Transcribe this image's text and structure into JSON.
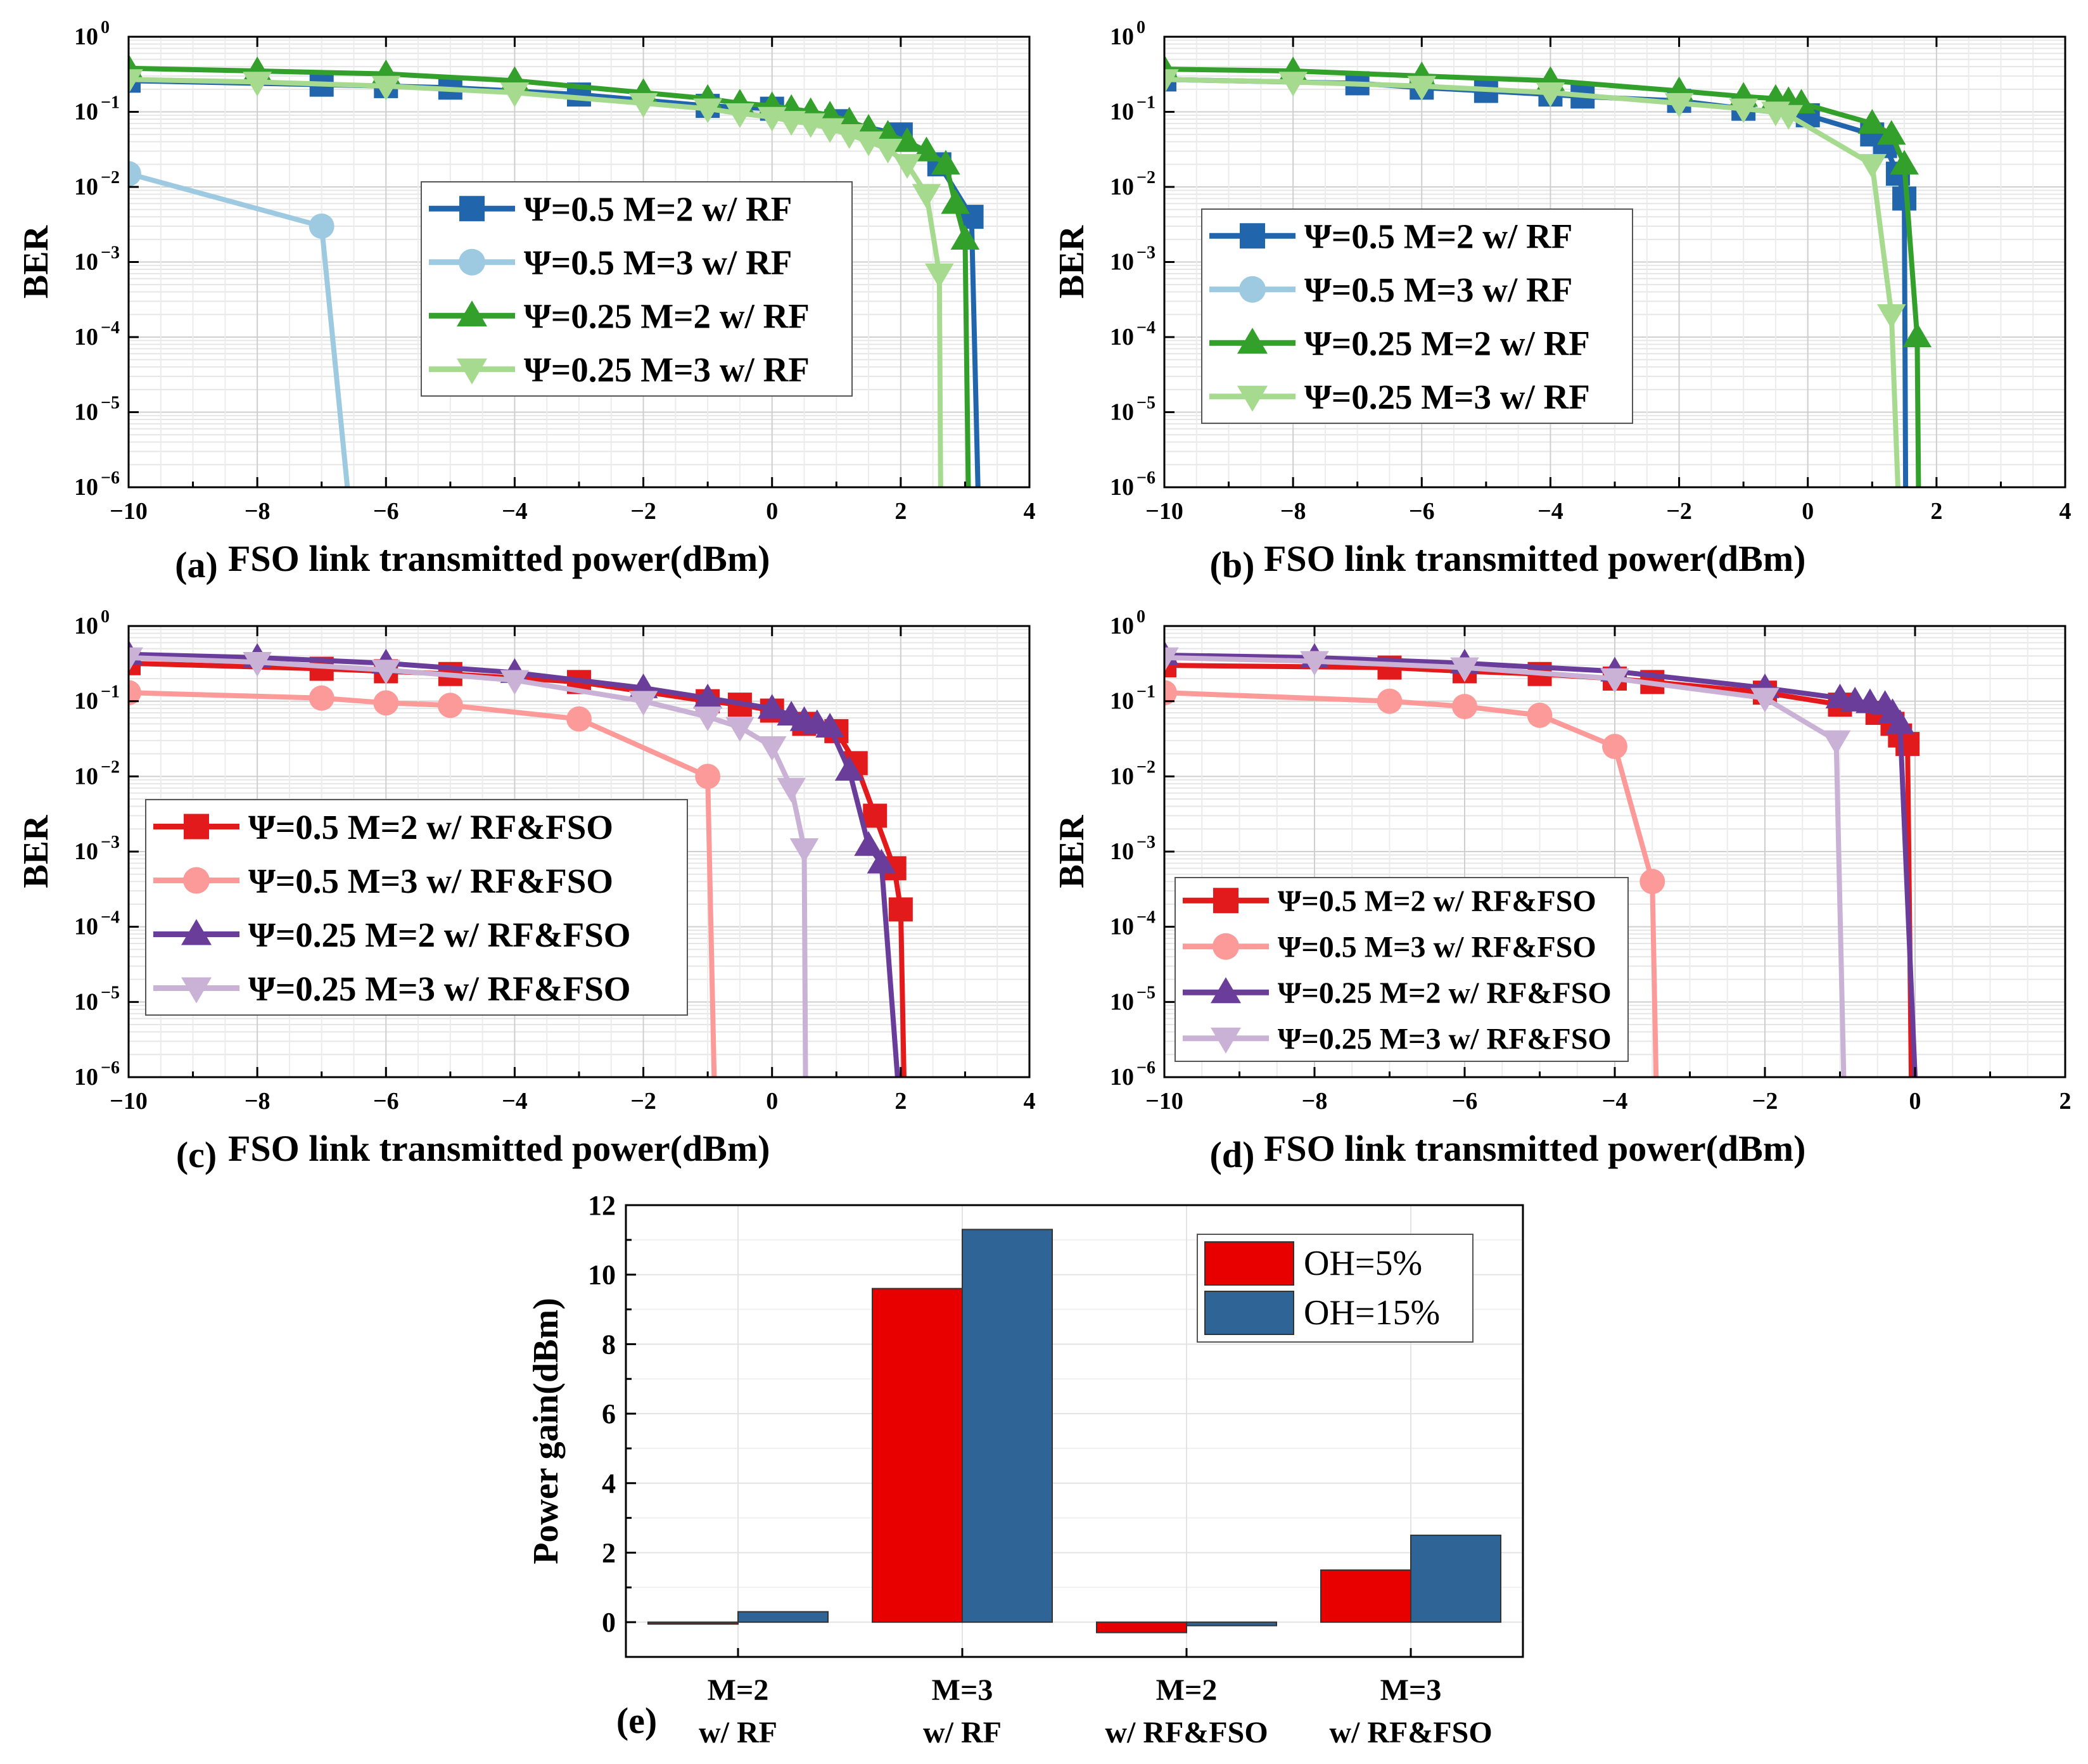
{
  "chart_data": [
    {
      "id": "a",
      "type": "line",
      "yscale": "log",
      "panel_label": "(a)",
      "xlabel": "FSO link transmitted power(dBm)",
      "ylabel": "BER",
      "xlim": [
        -10,
        4
      ],
      "xticks": [
        -10,
        -8,
        -6,
        -4,
        -2,
        0,
        2,
        4
      ],
      "ylim_exp": [
        -6,
        0
      ],
      "legend_position": "center-right",
      "series": [
        {
          "name": "Ψ=0.5 M=2 w/ RF",
          "color": "#2166ac",
          "marker": "square",
          "x": [
            -10,
            -7,
            -6,
            -5,
            -3,
            -1,
            0,
            1,
            2,
            2.6,
            3.1,
            3.2
          ],
          "y": [
            0.26,
            0.23,
            0.22,
            0.21,
            0.17,
            0.12,
            0.11,
            0.075,
            0.05,
            0.02,
            0.004,
            1e-06
          ]
        },
        {
          "name": "Ψ=0.5 M=3 w/ RF",
          "color": "#9ecae1",
          "marker": "circle",
          "x": [
            -10,
            -7,
            -6.6
          ],
          "y": [
            0.015,
            0.003,
            1e-06
          ]
        },
        {
          "name": "Ψ=0.25 M=2 w/ RF",
          "color": "#33a02c",
          "marker": "triangle-up",
          "x": [
            -10,
            -8,
            -6,
            -4,
            -2,
            -1,
            -0.5,
            0,
            0.3,
            0.6,
            0.9,
            1.2,
            1.5,
            1.8,
            2.1,
            2.4,
            2.7,
            2.85,
            3.0,
            3.05
          ],
          "y": [
            0.38,
            0.35,
            0.32,
            0.26,
            0.18,
            0.15,
            0.13,
            0.12,
            0.11,
            0.1,
            0.09,
            0.075,
            0.06,
            0.05,
            0.04,
            0.03,
            0.02,
            0.006,
            0.002,
            1e-06
          ]
        },
        {
          "name": "Ψ=0.25 M=3 w/ RF",
          "color": "#a6db8f",
          "marker": "triangle-down",
          "x": [
            -10,
            -8,
            -6,
            -4,
            -2,
            -1,
            -0.5,
            0,
            0.3,
            0.6,
            0.9,
            1.2,
            1.5,
            1.8,
            2.1,
            2.4,
            2.6,
            2.62
          ],
          "y": [
            0.27,
            0.25,
            0.22,
            0.18,
            0.13,
            0.11,
            0.095,
            0.085,
            0.075,
            0.07,
            0.06,
            0.05,
            0.04,
            0.032,
            0.02,
            0.008,
            0.0007,
            1e-06
          ]
        }
      ]
    },
    {
      "id": "b",
      "type": "line",
      "yscale": "log",
      "panel_label": "(b)",
      "xlabel": "FSO link transmitted power(dBm)",
      "ylabel": "BER",
      "xlim": [
        -10,
        4
      ],
      "xticks": [
        -10,
        -8,
        -6,
        -4,
        -2,
        0,
        2,
        4
      ],
      "ylim_exp": [
        -6,
        0
      ],
      "legend_position": "center-left",
      "series": [
        {
          "name": "Ψ=0.5 M=2 w/ RF",
          "color": "#2166ac",
          "marker": "square",
          "x": [
            -10,
            -7,
            -6,
            -5,
            -4,
            -3.5,
            -2,
            -1,
            0,
            1,
            1.2,
            1.4,
            1.5,
            1.52
          ],
          "y": [
            0.27,
            0.24,
            0.21,
            0.19,
            0.17,
            0.16,
            0.14,
            0.11,
            0.09,
            0.05,
            0.035,
            0.015,
            0.007,
            1e-06
          ]
        },
        {
          "name": "Ψ=0.5 M=3 w/ RF",
          "color": "#9ecae1",
          "marker": "circle",
          "x": [],
          "y": []
        },
        {
          "name": "Ψ=0.25 M=2 w/ RF",
          "color": "#33a02c",
          "marker": "triangle-up",
          "x": [
            -10,
            -8,
            -6,
            -4,
            -2,
            -1,
            -0.5,
            -0.3,
            -0.1,
            1,
            1.3,
            1.5,
            1.7,
            1.72
          ],
          "y": [
            0.37,
            0.35,
            0.3,
            0.26,
            0.19,
            0.16,
            0.15,
            0.14,
            0.13,
            0.07,
            0.05,
            0.02,
            0.0001,
            1e-06
          ]
        },
        {
          "name": "Ψ=0.25 M=3 w/ RF",
          "color": "#a6db8f",
          "marker": "triangle-down",
          "x": [
            -10,
            -8,
            -6,
            -4,
            -2,
            -1,
            -0.5,
            -0.3,
            1,
            1.3,
            1.4
          ],
          "y": [
            0.27,
            0.25,
            0.22,
            0.18,
            0.13,
            0.11,
            0.1,
            0.09,
            0.02,
            0.0002,
            1e-06
          ]
        }
      ]
    },
    {
      "id": "c",
      "type": "line",
      "yscale": "log",
      "panel_label": "(c)",
      "xlabel": "FSO link transmitted power(dBm)",
      "ylabel": "BER",
      "xlim": [
        -10,
        4
      ],
      "xticks": [
        -10,
        -8,
        -6,
        -4,
        -2,
        0,
        2,
        4
      ],
      "ylim_exp": [
        -6,
        0
      ],
      "legend_position": "bottom-left",
      "series": [
        {
          "name": "Ψ=0.5 M=2 w/ RF&FSO",
          "color": "#e31a1c",
          "marker": "square",
          "x": [
            -10,
            -7,
            -6,
            -5,
            -3,
            -1,
            -0.5,
            0,
            0.5,
            1,
            1.3,
            1.6,
            1.9,
            2.0,
            2.05
          ],
          "y": [
            0.32,
            0.27,
            0.25,
            0.23,
            0.18,
            0.1,
            0.09,
            0.075,
            0.05,
            0.04,
            0.015,
            0.003,
            0.0006,
            0.00017,
            1e-06
          ]
        },
        {
          "name": "Ψ=0.5 M=3 w/ RF&FSO",
          "color": "#fb9a99",
          "marker": "circle",
          "x": [
            -10,
            -7,
            -6,
            -5,
            -3,
            -1,
            -0.9
          ],
          "y": [
            0.13,
            0.11,
            0.095,
            0.088,
            0.058,
            0.01,
            1e-06
          ]
        },
        {
          "name": "Ψ=0.25 M=2 w/ RF&FSO",
          "color": "#6a3d9a",
          "marker": "triangle-up",
          "x": [
            -10,
            -8,
            -6,
            -4,
            -2,
            -1,
            0,
            0.3,
            0.5,
            0.7,
            0.9,
            1.2,
            1.5,
            1.7,
            1.95
          ],
          "y": [
            0.42,
            0.38,
            0.32,
            0.24,
            0.15,
            0.11,
            0.08,
            0.065,
            0.055,
            0.05,
            0.045,
            0.012,
            0.0012,
            0.0007,
            1e-06
          ]
        },
        {
          "name": "Ψ=0.25 M=3 w/ RF&FSO",
          "color": "#cab2d6",
          "marker": "triangle-down",
          "x": [
            -10,
            -8,
            -6,
            -4,
            -2,
            -1,
            -0.5,
            0,
            0.3,
            0.5,
            0.52
          ],
          "y": [
            0.38,
            0.33,
            0.26,
            0.19,
            0.1,
            0.062,
            0.045,
            0.025,
            0.007,
            0.0011,
            1e-06
          ]
        }
      ]
    },
    {
      "id": "d",
      "type": "line",
      "yscale": "log",
      "panel_label": "(d)",
      "xlabel": "FSO link transmitted power(dBm)",
      "ylabel": "BER",
      "xlim": [
        -10,
        2
      ],
      "xticks": [
        -10,
        -8,
        -6,
        -4,
        -2,
        0,
        2
      ],
      "ylim_exp": [
        -6,
        0
      ],
      "legend_position": "bottom-left",
      "series": [
        {
          "name": "Ψ=0.5 M=2 w/ RF&FSO",
          "color": "#e31a1c",
          "marker": "square",
          "x": [
            -10,
            -7,
            -6,
            -5,
            -4,
            -3.5,
            -2,
            -1,
            -0.5,
            -0.3,
            -0.2,
            -0.1,
            -0.05
          ],
          "y": [
            0.3,
            0.28,
            0.25,
            0.23,
            0.2,
            0.18,
            0.13,
            0.09,
            0.07,
            0.05,
            0.035,
            0.027,
            1e-06
          ]
        },
        {
          "name": "Ψ=0.5 M=3 w/ RF&FSO",
          "color": "#fb9a99",
          "marker": "circle",
          "x": [
            -10,
            -7,
            -6,
            -5,
            -4,
            -3.5,
            -3.45
          ],
          "y": [
            0.13,
            0.1,
            0.085,
            0.065,
            0.025,
            0.0004,
            1e-06
          ]
        },
        {
          "name": "Ψ=0.25 M=2 w/ RF&FSO",
          "color": "#6a3d9a",
          "marker": "triangle-up",
          "x": [
            -10,
            -8,
            -6,
            -4,
            -2,
            -1,
            -0.8,
            -0.6,
            -0.4,
            -0.3,
            -0.2,
            0
          ],
          "y": [
            0.41,
            0.38,
            0.32,
            0.25,
            0.15,
            0.11,
            0.1,
            0.095,
            0.09,
            0.07,
            0.05,
            1e-06
          ]
        },
        {
          "name": "Ψ=0.25 M=3 w/ RF&FSO",
          "color": "#cab2d6",
          "marker": "triangle-down",
          "x": [
            -10,
            -8,
            -6,
            -4,
            -2,
            -1.05,
            -0.95
          ],
          "y": [
            0.38,
            0.34,
            0.28,
            0.2,
            0.11,
            0.03,
            1e-06
          ]
        }
      ]
    },
    {
      "id": "e",
      "type": "bar",
      "panel_label": "(e)",
      "ylabel": "Power gain(dBm)",
      "ylim": [
        -1,
        12
      ],
      "yticks": [
        0,
        2,
        4,
        6,
        8,
        10,
        12
      ],
      "legend_position": "top-right",
      "categories": [
        [
          "M=2",
          "w/ RF"
        ],
        [
          "M=3",
          "w/ RF"
        ],
        [
          "M=2",
          "w/ RF&FSO"
        ],
        [
          "M=3",
          "w/ RF&FSO"
        ]
      ],
      "series": [
        {
          "name": "OH=5%",
          "color": "#e80000",
          "values": [
            0.0,
            9.6,
            -0.3,
            1.5
          ]
        },
        {
          "name": "OH=15%",
          "color": "#2f6496",
          "values": [
            0.3,
            11.3,
            -0.1,
            2.5
          ]
        }
      ]
    }
  ]
}
